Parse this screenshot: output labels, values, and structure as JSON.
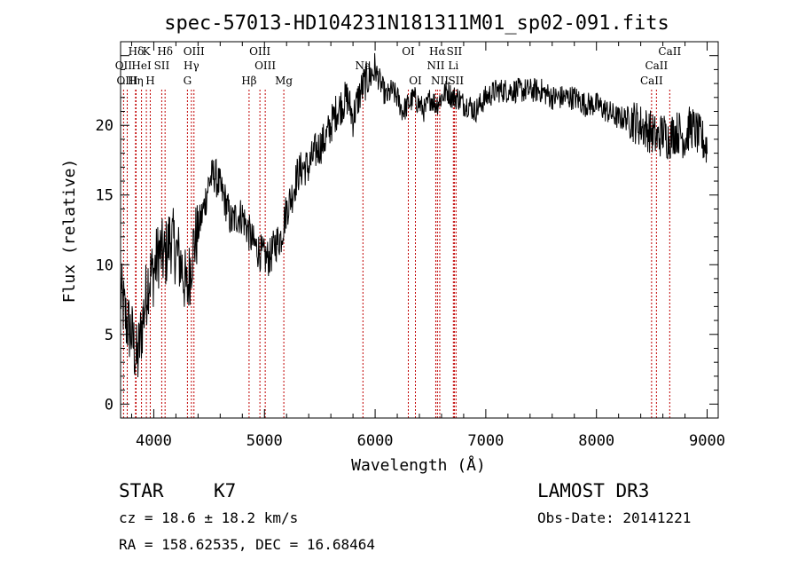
{
  "chart_data": {
    "type": "line",
    "title": "spec-57013-HD104231N181311M01_sp02-091.fits",
    "xlabel": "Wavelength (Å)",
    "ylabel": "Flux (relative)",
    "xlim": [
      3700,
      9100
    ],
    "ylim": [
      -1,
      26
    ],
    "x_ticks": [
      4000,
      5000,
      6000,
      7000,
      8000,
      9000
    ],
    "y_ticks": [
      0,
      5,
      10,
      15,
      20
    ],
    "spectrum": {
      "name": "flux",
      "x": [
        3700,
        3750,
        3800,
        3850,
        3900,
        3950,
        4000,
        4050,
        4100,
        4150,
        4200,
        4250,
        4300,
        4350,
        4400,
        4450,
        4500,
        4550,
        4600,
        4650,
        4700,
        4750,
        4800,
        4850,
        4900,
        4950,
        5000,
        5050,
        5100,
        5150,
        5200,
        5250,
        5300,
        5350,
        5400,
        5450,
        5500,
        5550,
        5600,
        5650,
        5700,
        5750,
        5800,
        5850,
        5900,
        5950,
        6000,
        6050,
        6100,
        6150,
        6200,
        6250,
        6300,
        6350,
        6400,
        6450,
        6500,
        6550,
        6600,
        6650,
        6700,
        6750,
        6800,
        6850,
        6900,
        6950,
        7000,
        7100,
        7200,
        7300,
        7400,
        7500,
        7600,
        7700,
        7800,
        7900,
        8000,
        8100,
        8200,
        8300,
        8400,
        8500,
        8550,
        8600,
        8650,
        8700,
        8750,
        8800,
        8850,
        8900,
        8950,
        9000
      ],
      "y": [
        8,
        6,
        5,
        3,
        6,
        9,
        9.5,
        11,
        10.5,
        12,
        11,
        10,
        8,
        11,
        12.5,
        14,
        16,
        16.5,
        15.5,
        14.5,
        13,
        13.5,
        13.5,
        12.5,
        11.5,
        11,
        10.5,
        10.5,
        11.5,
        12,
        14,
        15,
        16.5,
        17,
        17,
        18,
        18.5,
        19,
        20,
        21,
        21.5,
        22,
        20.5,
        22,
        23,
        23.5,
        24,
        23,
        22,
        22.5,
        22,
        21,
        21.5,
        22,
        21.5,
        21,
        22,
        21.5,
        22,
        22.5,
        22,
        22,
        21.5,
        21.5,
        21,
        21.5,
        22,
        22.5,
        22.5,
        22.5,
        22.5,
        22.5,
        22,
        22,
        22,
        21.5,
        21.5,
        21,
        20.5,
        20.5,
        20,
        19.5,
        19,
        19.5,
        19,
        19.5,
        19.5,
        19,
        20,
        19.5,
        19,
        18.5
      ]
    },
    "spectral_lines": [
      {
        "label": "Hδ",
        "wavelength": 3840,
        "row": 1
      },
      {
        "label": "K",
        "wavelength": 3933,
        "row": 1
      },
      {
        "label": "Hδ",
        "wavelength": 4102,
        "row": 1
      },
      {
        "label": "OIII",
        "wavelength": 4363,
        "row": 1
      },
      {
        "label": "OIII",
        "wavelength": 4959,
        "row": 1
      },
      {
        "label": "OI",
        "wavelength": 6300,
        "row": 1
      },
      {
        "label": "Hα",
        "wavelength": 6563,
        "row": 1
      },
      {
        "label": "SII",
        "wavelength": 6716,
        "row": 1
      },
      {
        "label": "CaII",
        "wavelength": 8662,
        "row": 1
      },
      {
        "label": "OII",
        "wavelength": 3727,
        "row": 2
      },
      {
        "label": "HeI",
        "wavelength": 3889,
        "row": 2
      },
      {
        "label": "SII",
        "wavelength": 4072,
        "row": 2
      },
      {
        "label": "Hγ",
        "wavelength": 4340,
        "row": 2
      },
      {
        "label": "OIII",
        "wavelength": 5007,
        "row": 2
      },
      {
        "label": "Na",
        "wavelength": 5890,
        "row": 2
      },
      {
        "label": "NII",
        "wavelength": 6548,
        "row": 2
      },
      {
        "label": "Li",
        "wavelength": 6707,
        "row": 2
      },
      {
        "label": "CaII",
        "wavelength": 8542,
        "row": 2
      },
      {
        "label": "OIII",
        "wavelength": 3760,
        "row": 3
      },
      {
        "label": "Hη",
        "wavelength": 3835,
        "row": 3
      },
      {
        "label": "H",
        "wavelength": 3968,
        "row": 3
      },
      {
        "label": "G",
        "wavelength": 4304,
        "row": 3
      },
      {
        "label": "Hβ",
        "wavelength": 4861,
        "row": 3
      },
      {
        "label": "Mg",
        "wavelength": 5175,
        "row": 3
      },
      {
        "label": "OI",
        "wavelength": 6364,
        "row": 3
      },
      {
        "label": "NII",
        "wavelength": 6584,
        "row": 3
      },
      {
        "label": "SII",
        "wavelength": 6731,
        "row": 3
      },
      {
        "label": "CaII",
        "wavelength": 8498,
        "row": 3
      }
    ]
  },
  "info": {
    "object_class": "STAR",
    "subclass": "K7",
    "survey": "LAMOST DR3",
    "redshift": "cz = 18.6 ± 18.2 km/s",
    "obs_date": "Obs-Date: 20141221",
    "coords": "RA = 158.62535, DEC =  16.68464"
  }
}
